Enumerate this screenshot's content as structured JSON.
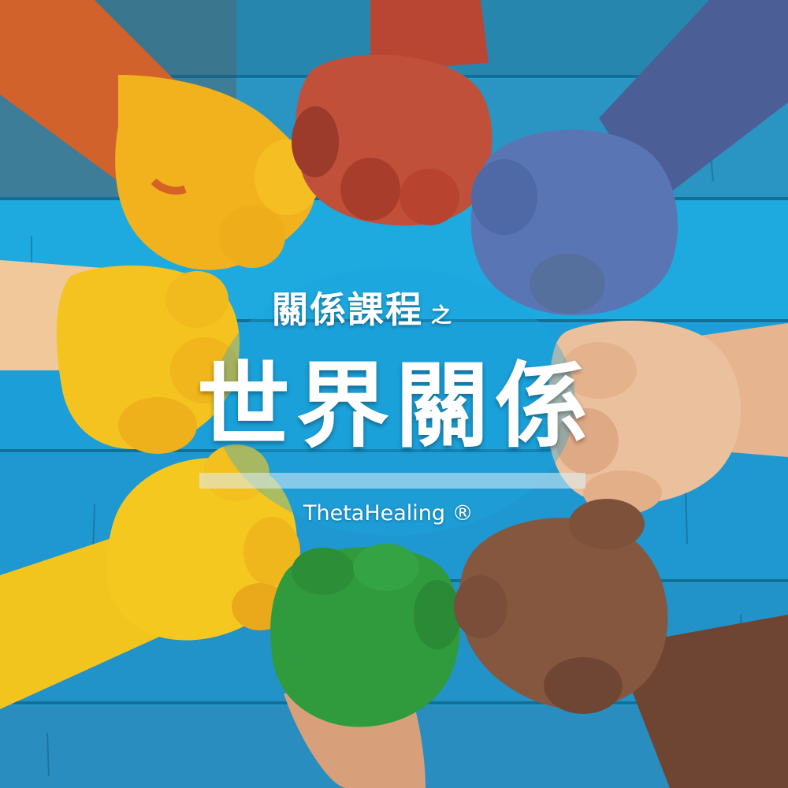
{
  "poster": {
    "subtitle_main": "關係課程",
    "subtitle_suffix": "之",
    "headline": "世界關係",
    "brand": "ThetaHealing ®"
  },
  "scene": {
    "hands": [
      {
        "name": "orange-yellow-painted-hand",
        "color": "#f0b020"
      },
      {
        "name": "red-painted-hand",
        "color": "#b84a36"
      },
      {
        "name": "blue-painted-hand",
        "color": "#4f6aa8"
      },
      {
        "name": "light-skin-hand-right",
        "color": "#e8b890"
      },
      {
        "name": "dark-skin-hand",
        "color": "#7a4e38"
      },
      {
        "name": "green-painted-hand",
        "color": "#2f9a3c"
      },
      {
        "name": "yellow-painted-hand-lower-left",
        "color": "#f2c01e"
      },
      {
        "name": "yellow-painted-hand-left",
        "color": "#f3c21f"
      }
    ],
    "background": "turquoise wooden planks"
  }
}
